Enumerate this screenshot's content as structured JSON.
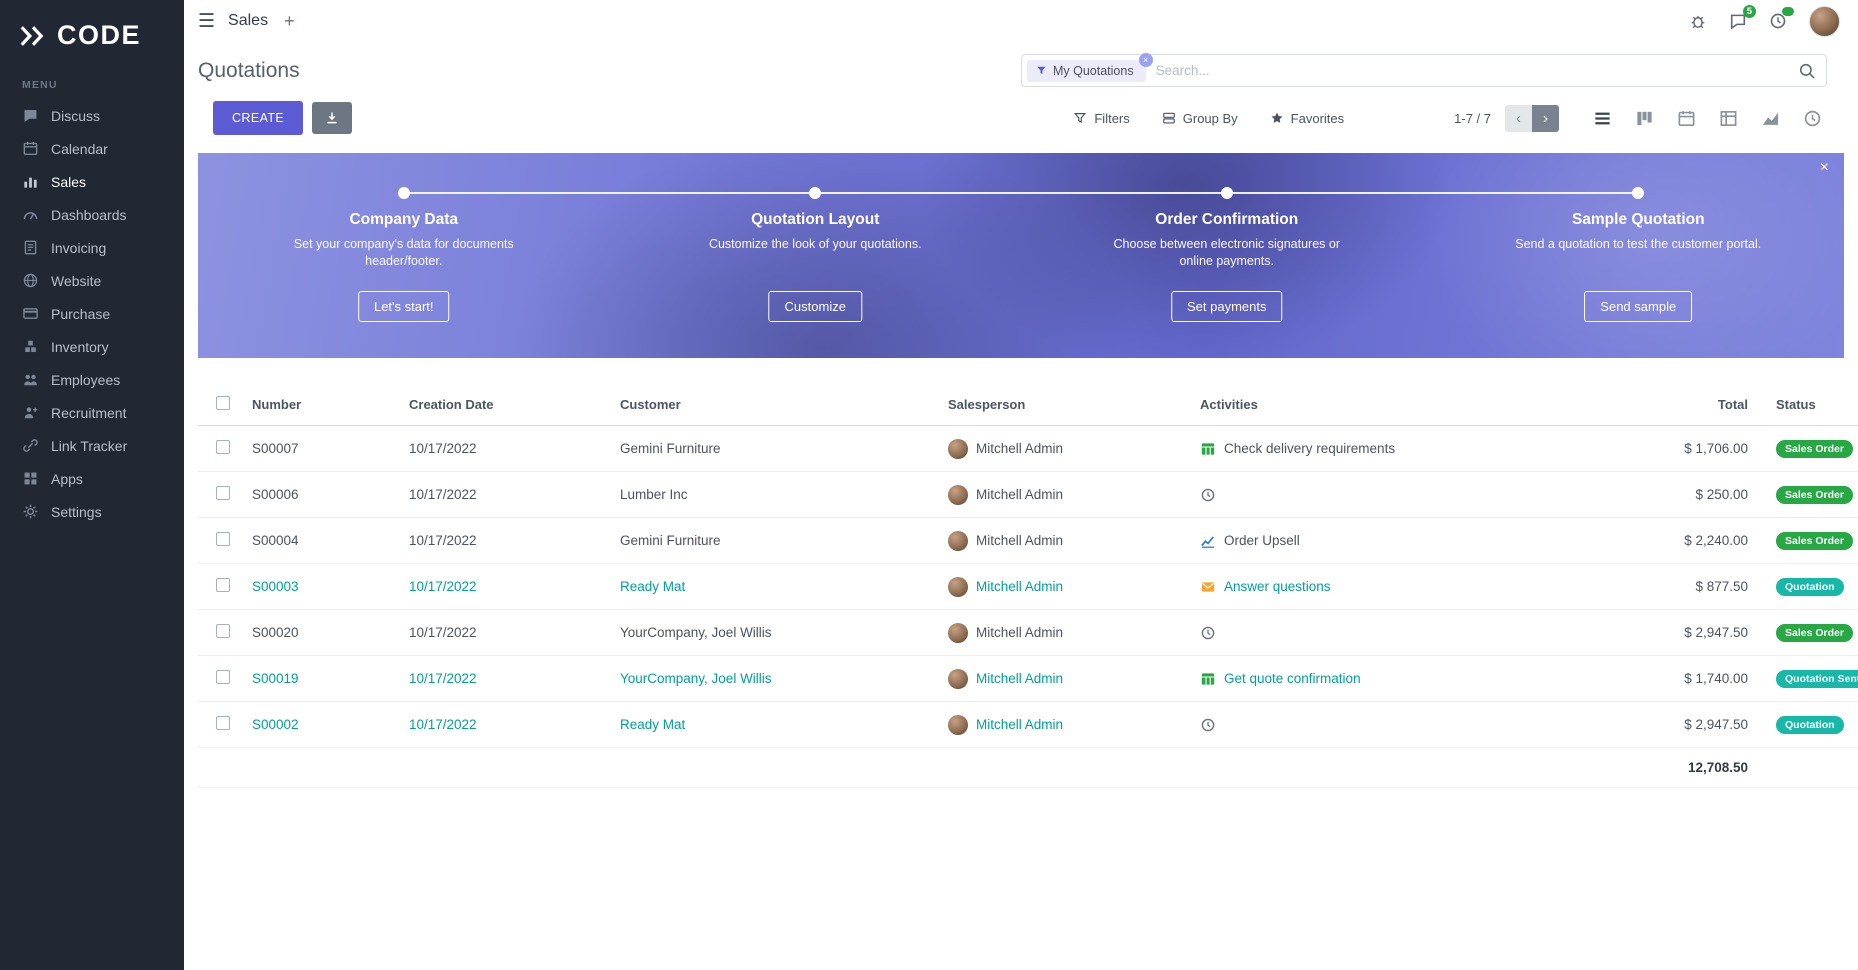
{
  "colors": {
    "accent": "#5C5BD3",
    "teal": "#00A09B",
    "green": "#28A745",
    "sidebar": "#212834"
  },
  "sidebar": {
    "logo": "CODE",
    "menu_label": "MENU",
    "items": [
      {
        "label": "Discuss",
        "icon": "chat-icon",
        "active": false
      },
      {
        "label": "Calendar",
        "icon": "calendar-icon",
        "active": false
      },
      {
        "label": "Sales",
        "icon": "sales-icon",
        "active": true
      },
      {
        "label": "Dashboards",
        "icon": "dashboard-icon",
        "active": false
      },
      {
        "label": "Invoicing",
        "icon": "invoice-icon",
        "active": false
      },
      {
        "label": "Website",
        "icon": "globe-icon",
        "active": false
      },
      {
        "label": "Purchase",
        "icon": "purchase-icon",
        "active": false
      },
      {
        "label": "Inventory",
        "icon": "inventory-icon",
        "active": false
      },
      {
        "label": "Employees",
        "icon": "employees-icon",
        "active": false
      },
      {
        "label": "Recruitment",
        "icon": "recruitment-icon",
        "active": false
      },
      {
        "label": "Link Tracker",
        "icon": "link-icon",
        "active": false
      },
      {
        "label": "Apps",
        "icon": "apps-icon",
        "active": false
      },
      {
        "label": "Settings",
        "icon": "gear-icon",
        "active": false
      }
    ]
  },
  "topbar": {
    "app_name": "Sales",
    "plus_label": "+",
    "messages_badge": "5"
  },
  "control_panel": {
    "title": "Quotations",
    "search": {
      "filter_chip": "My Quotations",
      "placeholder": "Search..."
    },
    "create_label": "CREATE",
    "filters_label": "Filters",
    "group_by_label": "Group By",
    "favorites_label": "Favorites",
    "pager": "1-7 / 7"
  },
  "banner": {
    "steps": [
      {
        "title": "Company Data",
        "description": "Set your company's data for documents header/footer.",
        "button": "Let's start!"
      },
      {
        "title": "Quotation Layout",
        "description": "Customize the look of your quotations.",
        "button": "Customize"
      },
      {
        "title": "Order Confirmation",
        "description": "Choose between electronic signatures or online payments.",
        "button": "Set payments"
      },
      {
        "title": "Sample Quotation",
        "description": "Send a quotation to test the customer portal.",
        "button": "Send sample"
      }
    ]
  },
  "table": {
    "columns": [
      "Number",
      "Creation Date",
      "Customer",
      "Salesperson",
      "Activities",
      "Total",
      "Status"
    ],
    "rows": [
      {
        "number": "S00007",
        "creation_date": "10/17/2022",
        "customer": "Gemini Furniture",
        "salesperson": "Mitchell Admin",
        "activity": {
          "icon": "spreadsheet-icon",
          "label": "Check delivery requirements"
        },
        "total": "$ 1,706.00",
        "status": "Sales Order",
        "status_type": "success",
        "highlighted": false
      },
      {
        "number": "S00006",
        "creation_date": "10/17/2022",
        "customer": "Lumber Inc",
        "salesperson": "Mitchell Admin",
        "activity": {
          "icon": "clock-icon",
          "label": ""
        },
        "total": "$ 250.00",
        "status": "Sales Order",
        "status_type": "success",
        "highlighted": false
      },
      {
        "number": "S00004",
        "creation_date": "10/17/2022",
        "customer": "Gemini Furniture",
        "salesperson": "Mitchell Admin",
        "activity": {
          "icon": "chart-icon",
          "label": "Order Upsell"
        },
        "total": "$ 2,240.00",
        "status": "Sales Order",
        "status_type": "success",
        "highlighted": false
      },
      {
        "number": "S00003",
        "creation_date": "10/17/2022",
        "customer": "Ready Mat",
        "salesperson": "Mitchell Admin",
        "activity": {
          "icon": "envelope-icon",
          "label": "Answer questions"
        },
        "total": "$ 877.50",
        "status": "Quotation",
        "status_type": "teal",
        "highlighted": true
      },
      {
        "number": "S00020",
        "creation_date": "10/17/2022",
        "customer": "YourCompany, Joel Willis",
        "salesperson": "Mitchell Admin",
        "activity": {
          "icon": "clock-icon",
          "label": ""
        },
        "total": "$ 2,947.50",
        "status": "Sales Order",
        "status_type": "success",
        "highlighted": false
      },
      {
        "number": "S00019",
        "creation_date": "10/17/2022",
        "customer": "YourCompany, Joel Willis",
        "salesperson": "Mitchell Admin",
        "activity": {
          "icon": "spreadsheet-icon",
          "label": "Get quote confirmation"
        },
        "total": "$ 1,740.00",
        "status": "Quotation Sent",
        "status_type": "teal",
        "highlighted": true
      },
      {
        "number": "S00002",
        "creation_date": "10/17/2022",
        "customer": "Ready Mat",
        "salesperson": "Mitchell Admin",
        "activity": {
          "icon": "clock-icon",
          "label": ""
        },
        "total": "$ 2,947.50",
        "status": "Quotation",
        "status_type": "teal",
        "highlighted": true
      }
    ],
    "footer_total": "12,708.50"
  }
}
